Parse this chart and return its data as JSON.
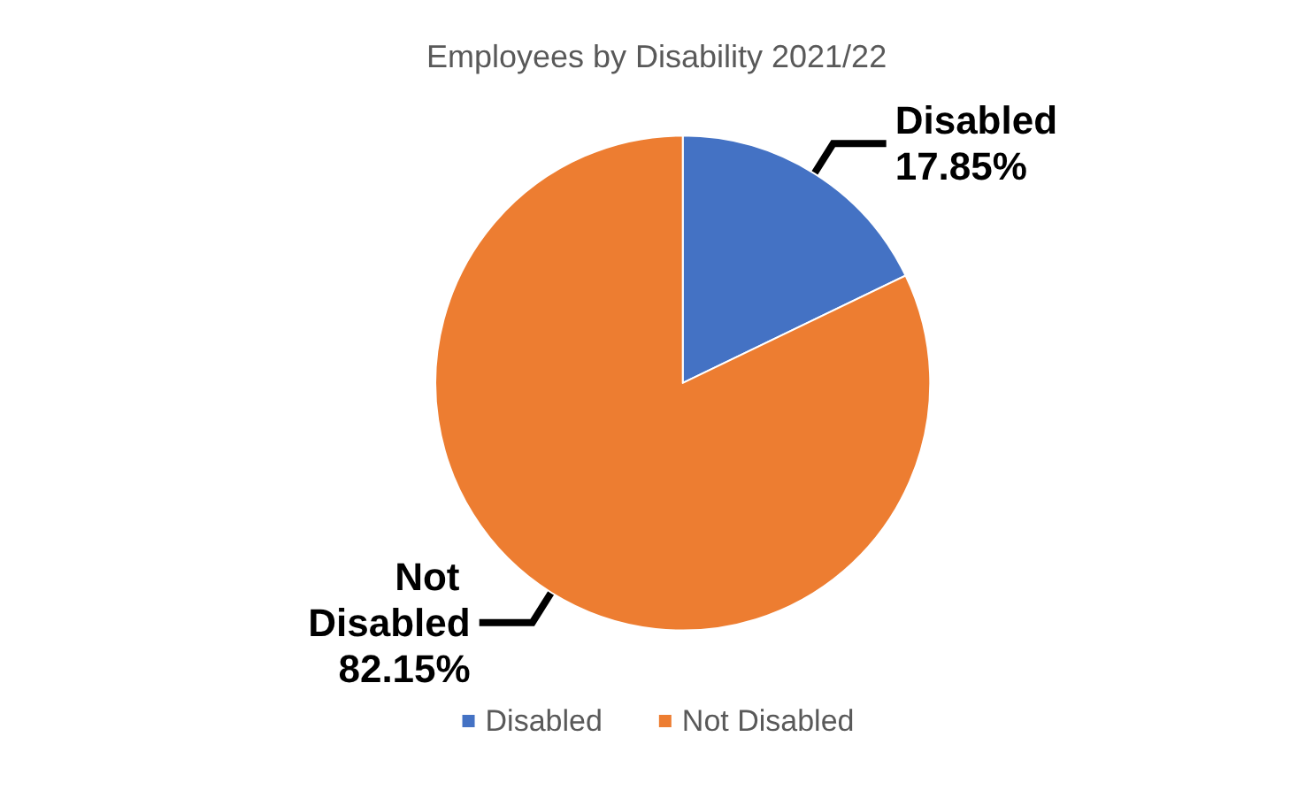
{
  "chart_data": {
    "type": "pie",
    "title": "Employees by Disability 2021/22",
    "categories": [
      "Disabled",
      "Not Disabled"
    ],
    "values": [
      17.85,
      82.15
    ],
    "colors": [
      "#4472c4",
      "#ed7d31"
    ],
    "value_labels": [
      "17.85%",
      "82.15%"
    ],
    "legend": "bottom"
  }
}
